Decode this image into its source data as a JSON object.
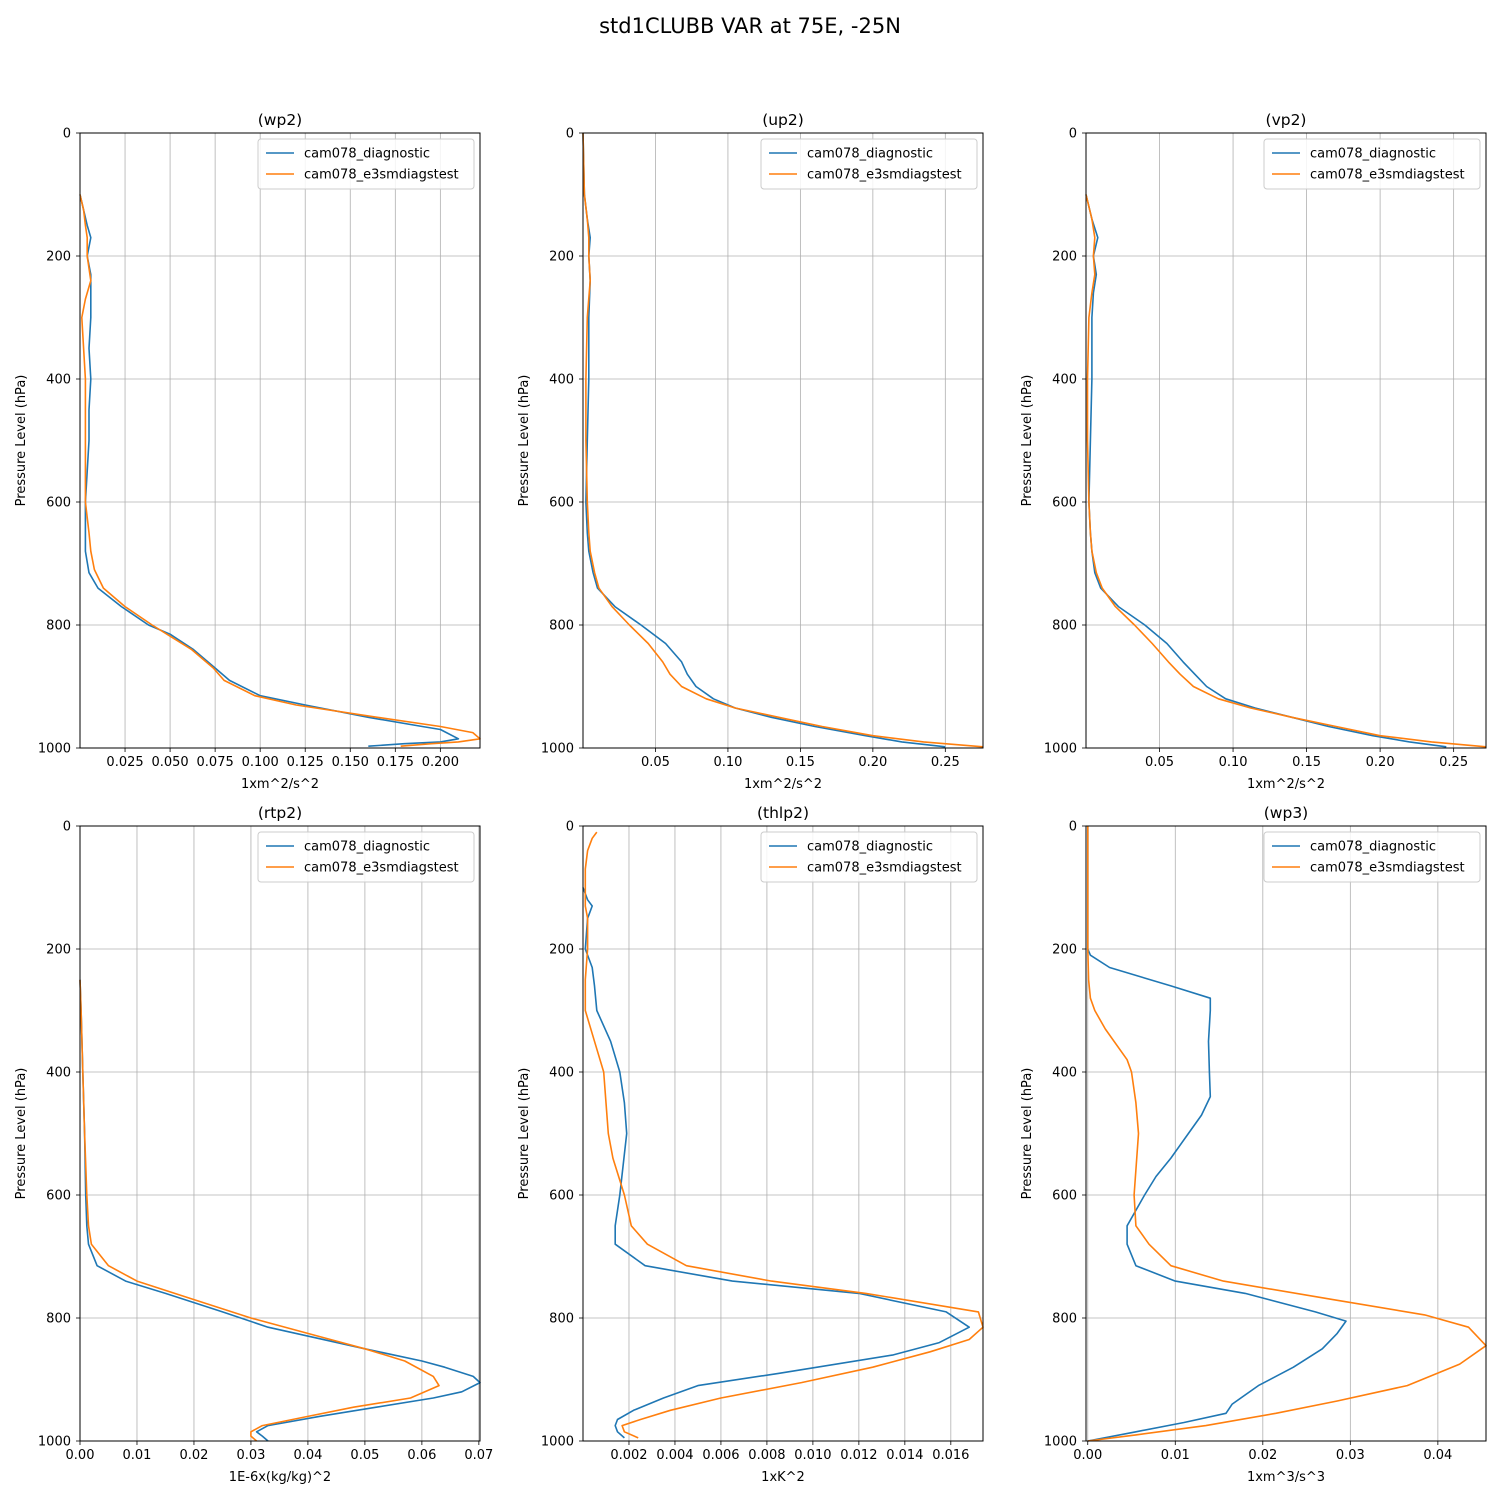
{
  "figure": {
    "title": "std1CLUBB VAR at 75E, -25N"
  },
  "colors": {
    "cam078_diagnostic": "#1f77b4",
    "cam078_e3smdiagstest": "#ff7f0e",
    "grid": "#b0b0b0"
  },
  "chart_data": [
    {
      "type": "line",
      "title": "(wp2)",
      "xlabel": "1xm^2/s^2",
      "ylabel": "Pressure Level (hPa)",
      "xlim": [
        0.0,
        0.222
      ],
      "ylim": [
        1000,
        0
      ],
      "y_inverted": true,
      "xticks": [
        0.025,
        0.05,
        0.075,
        0.1,
        0.125,
        0.15,
        0.175,
        0.2
      ],
      "xtick_labels": [
        "0.025",
        "0.050",
        "0.075",
        "0.100",
        "0.125",
        "0.150",
        "0.175",
        "0.200"
      ],
      "yticks": [
        0,
        200,
        400,
        600,
        800,
        1000
      ],
      "ytick_labels": [
        "0",
        "200",
        "400",
        "600",
        "800",
        "1000"
      ],
      "grid": true,
      "legend": "top-right",
      "series": [
        {
          "name": "cam078_diagnostic",
          "p": [
            100,
            125,
            150,
            170,
            200,
            230,
            260,
            300,
            350,
            400,
            450,
            500,
            550,
            600,
            650,
            680,
            715,
            740,
            770,
            800,
            815,
            840,
            870,
            890,
            915,
            930,
            950,
            965,
            970,
            985,
            990,
            993,
            997
          ],
          "x": [
            0.0,
            0.002,
            0.004,
            0.006,
            0.004,
            0.006,
            0.006,
            0.006,
            0.005,
            0.006,
            0.005,
            0.005,
            0.004,
            0.003,
            0.003,
            0.003,
            0.005,
            0.01,
            0.023,
            0.038,
            0.05,
            0.063,
            0.075,
            0.083,
            0.1,
            0.125,
            0.16,
            0.19,
            0.2,
            0.21,
            0.2,
            0.18,
            0.16
          ]
        },
        {
          "name": "cam078_e3smdiagstest",
          "p": [
            100,
            125,
            150,
            170,
            200,
            240,
            270,
            300,
            350,
            400,
            450,
            500,
            550,
            600,
            650,
            680,
            710,
            740,
            770,
            800,
            840,
            870,
            890,
            915,
            930,
            950,
            965,
            975,
            985,
            990,
            993,
            997
          ],
          "x": [
            0.0,
            0.002,
            0.003,
            0.004,
            0.004,
            0.006,
            0.003,
            0.001,
            0.002,
            0.003,
            0.003,
            0.003,
            0.003,
            0.003,
            0.005,
            0.006,
            0.008,
            0.013,
            0.025,
            0.04,
            0.062,
            0.074,
            0.08,
            0.097,
            0.12,
            0.165,
            0.2,
            0.218,
            0.222,
            0.21,
            0.195,
            0.178
          ]
        }
      ]
    },
    {
      "type": "line",
      "title": "(up2)",
      "xlabel": "1xm^2/s^2",
      "ylabel": "Pressure Level (hPa)",
      "xlim": [
        0.0,
        0.276
      ],
      "ylim": [
        1000,
        0
      ],
      "y_inverted": true,
      "xticks": [
        0.05,
        0.1,
        0.15,
        0.2,
        0.25
      ],
      "xtick_labels": [
        "0.05",
        "0.10",
        "0.15",
        "0.20",
        "0.25"
      ],
      "yticks": [
        0,
        200,
        400,
        600,
        800,
        1000
      ],
      "ytick_labels": [
        "0",
        "200",
        "400",
        "600",
        "800",
        "1000"
      ],
      "grid": true,
      "legend": "top-right",
      "series": [
        {
          "name": "cam078_diagnostic",
          "p": [
            0,
            100,
            140,
            170,
            200,
            240,
            300,
            400,
            500,
            600,
            650,
            680,
            715,
            740,
            770,
            800,
            830,
            860,
            880,
            900,
            920,
            935,
            950,
            965,
            980,
            990,
            998
          ],
          "x": [
            0.0,
            0.001,
            0.003,
            0.005,
            0.004,
            0.005,
            0.004,
            0.004,
            0.003,
            0.002,
            0.003,
            0.004,
            0.007,
            0.01,
            0.022,
            0.04,
            0.057,
            0.068,
            0.072,
            0.078,
            0.09,
            0.105,
            0.13,
            0.16,
            0.195,
            0.22,
            0.25
          ]
        },
        {
          "name": "cam078_e3smdiagstest",
          "p": [
            0,
            100,
            140,
            170,
            200,
            240,
            300,
            400,
            500,
            600,
            650,
            680,
            715,
            740,
            770,
            800,
            830,
            860,
            880,
            900,
            920,
            935,
            950,
            965,
            980,
            990,
            998
          ],
          "x": [
            0.0,
            0.001,
            0.003,
            0.004,
            0.004,
            0.005,
            0.003,
            0.002,
            0.002,
            0.003,
            0.004,
            0.005,
            0.008,
            0.011,
            0.02,
            0.032,
            0.045,
            0.055,
            0.06,
            0.068,
            0.085,
            0.105,
            0.135,
            0.165,
            0.2,
            0.235,
            0.276
          ]
        }
      ]
    },
    {
      "type": "line",
      "title": "(vp2)",
      "xlabel": "1xm^2/s^2",
      "ylabel": "Pressure Level (hPa)",
      "xlim": [
        0.0,
        0.272
      ],
      "ylim": [
        1000,
        0
      ],
      "y_inverted": true,
      "xticks": [
        0.05,
        0.1,
        0.15,
        0.2,
        0.25
      ],
      "xtick_labels": [
        "0.05",
        "0.10",
        "0.15",
        "0.20",
        "0.25"
      ],
      "yticks": [
        0,
        200,
        400,
        600,
        800,
        1000
      ],
      "ytick_labels": [
        "0",
        "200",
        "400",
        "600",
        "800",
        "1000"
      ],
      "grid": true,
      "legend": "top-right",
      "series": [
        {
          "name": "cam078_diagnostic",
          "p": [
            100,
            140,
            170,
            200,
            230,
            260,
            300,
            400,
            500,
            600,
            650,
            680,
            715,
            740,
            770,
            800,
            830,
            860,
            880,
            900,
            920,
            935,
            950,
            965,
            980,
            990,
            998
          ],
          "x": [
            0.0,
            0.004,
            0.008,
            0.005,
            0.007,
            0.005,
            0.004,
            0.004,
            0.003,
            0.002,
            0.003,
            0.004,
            0.006,
            0.01,
            0.022,
            0.04,
            0.055,
            0.066,
            0.074,
            0.082,
            0.095,
            0.115,
            0.14,
            0.165,
            0.195,
            0.22,
            0.245
          ]
        },
        {
          "name": "cam078_e3smdiagstest",
          "p": [
            100,
            140,
            170,
            200,
            230,
            260,
            300,
            400,
            500,
            600,
            650,
            680,
            715,
            740,
            770,
            800,
            830,
            860,
            880,
            900,
            920,
            935,
            950,
            965,
            980,
            990,
            998
          ],
          "x": [
            0.0,
            0.004,
            0.006,
            0.005,
            0.006,
            0.004,
            0.002,
            0.001,
            0.001,
            0.002,
            0.003,
            0.004,
            0.007,
            0.011,
            0.02,
            0.033,
            0.045,
            0.056,
            0.064,
            0.073,
            0.09,
            0.112,
            0.14,
            0.17,
            0.2,
            0.235,
            0.272
          ]
        }
      ]
    },
    {
      "type": "line",
      "title": "(rtp2)",
      "xlabel": "1E-6x(kg/kg)^2",
      "ylabel": "Pressure Level (hPa)",
      "xlim": [
        0.0,
        0.0702
      ],
      "ylim": [
        1000,
        0
      ],
      "y_inverted": true,
      "xticks": [
        0.0,
        0.01,
        0.02,
        0.03,
        0.04,
        0.05,
        0.06,
        0.07
      ],
      "xtick_labels": [
        "0.00",
        "0.01",
        "0.02",
        "0.03",
        "0.04",
        "0.05",
        "0.06",
        "0.07"
      ],
      "yticks": [
        0,
        200,
        400,
        600,
        800,
        1000
      ],
      "ytick_labels": [
        "0",
        "200",
        "400",
        "600",
        "800",
        "1000"
      ],
      "grid": true,
      "legend": "top-right",
      "series": [
        {
          "name": "cam078_diagnostic",
          "p": [
            250,
            300,
            400,
            500,
            600,
            650,
            680,
            715,
            740,
            760,
            790,
            815,
            850,
            870,
            880,
            895,
            905,
            920,
            930,
            945,
            960,
            975,
            985,
            992,
            1000
          ],
          "x": [
            0.0,
            0.0002,
            0.0005,
            0.0008,
            0.001,
            0.0012,
            0.0015,
            0.003,
            0.008,
            0.015,
            0.025,
            0.033,
            0.05,
            0.06,
            0.064,
            0.069,
            0.0702,
            0.067,
            0.062,
            0.052,
            0.042,
            0.033,
            0.031,
            0.032,
            0.033
          ]
        },
        {
          "name": "cam078_e3smdiagstest",
          "p": [
            250,
            300,
            400,
            500,
            600,
            650,
            680,
            715,
            740,
            770,
            800,
            830,
            850,
            870,
            895,
            910,
            930,
            945,
            960,
            975,
            985,
            992,
            1000
          ],
          "x": [
            0.0,
            0.0002,
            0.0005,
            0.0008,
            0.0012,
            0.0015,
            0.002,
            0.005,
            0.01,
            0.02,
            0.03,
            0.042,
            0.05,
            0.057,
            0.062,
            0.063,
            0.058,
            0.048,
            0.04,
            0.032,
            0.03,
            0.03,
            0.031
          ]
        }
      ]
    },
    {
      "type": "line",
      "title": "(thlp2)",
      "xlabel": "1xK^2",
      "ylabel": "Pressure Level (hPa)",
      "xlim": [
        0.0,
        0.0174
      ],
      "ylim": [
        1000,
        0
      ],
      "y_inverted": true,
      "xticks": [
        0.002,
        0.004,
        0.006,
        0.008,
        0.01,
        0.012,
        0.014,
        0.016
      ],
      "xtick_labels": [
        "0.002",
        "0.004",
        "0.006",
        "0.008",
        "0.010",
        "0.012",
        "0.014",
        "0.016"
      ],
      "yticks": [
        0,
        200,
        400,
        600,
        800,
        1000
      ],
      "ytick_labels": [
        "0",
        "200",
        "400",
        "600",
        "800",
        "1000"
      ],
      "grid": true,
      "legend": "top-right",
      "series": [
        {
          "name": "cam078_diagnostic",
          "p": [
            100,
            120,
            130,
            150,
            200,
            230,
            260,
            300,
            350,
            400,
            450,
            500,
            600,
            650,
            680,
            715,
            740,
            760,
            790,
            815,
            840,
            860,
            890,
            910,
            930,
            950,
            965,
            975,
            985,
            995
          ],
          "x": [
            0.0,
            0.0002,
            0.0004,
            0.0002,
            0.0001,
            0.0004,
            0.0005,
            0.0006,
            0.0012,
            0.0016,
            0.0018,
            0.0019,
            0.0016,
            0.0014,
            0.0014,
            0.0027,
            0.0065,
            0.012,
            0.0158,
            0.0168,
            0.0155,
            0.0135,
            0.0085,
            0.005,
            0.0035,
            0.0022,
            0.0015,
            0.0014,
            0.0015,
            0.0018
          ]
        },
        {
          "name": "cam078_e3smdiagstest",
          "p": [
            10,
            20,
            40,
            70,
            100,
            130,
            150,
            200,
            250,
            300,
            350,
            400,
            450,
            500,
            540,
            600,
            650,
            680,
            715,
            740,
            760,
            790,
            815,
            835,
            855,
            880,
            905,
            930,
            950,
            965,
            975,
            985,
            995
          ],
          "x": [
            0.0006,
            0.0004,
            0.0002,
            0.0001,
            0.0001,
            0.0001,
            0.0002,
            0.0002,
            0.0001,
            0.0001,
            0.0005,
            0.0009,
            0.001,
            0.0011,
            0.0013,
            0.0018,
            0.0021,
            0.0028,
            0.0045,
            0.0082,
            0.0123,
            0.0172,
            0.0174,
            0.0168,
            0.0151,
            0.0126,
            0.0095,
            0.006,
            0.0038,
            0.0025,
            0.0017,
            0.0018,
            0.0024
          ]
        }
      ]
    },
    {
      "type": "line",
      "title": "(wp3)",
      "xlabel": "1xm^3/s^3",
      "ylabel": "Pressure Level (hPa)",
      "xlim": [
        -0.0002,
        0.0455
      ],
      "ylim": [
        1000,
        0
      ],
      "y_inverted": true,
      "xticks": [
        0.0,
        0.01,
        0.02,
        0.03,
        0.04
      ],
      "xtick_labels": [
        "0.00",
        "0.01",
        "0.02",
        "0.03",
        "0.04"
      ],
      "yticks": [
        0,
        200,
        400,
        600,
        800,
        1000
      ],
      "ytick_labels": [
        "0",
        "200",
        "400",
        "600",
        "800",
        "1000"
      ],
      "grid": true,
      "legend": "top-right",
      "series": [
        {
          "name": "cam078_diagnostic",
          "p": [
            0,
            100,
            200,
            210,
            230,
            260,
            280,
            300,
            350,
            400,
            440,
            470,
            500,
            540,
            570,
            600,
            650,
            680,
            715,
            740,
            760,
            790,
            805,
            825,
            850,
            880,
            910,
            940,
            955,
            970,
            985,
            1000
          ],
          "x": [
            0.0,
            0.0,
            0.0,
            0.0003,
            0.0025,
            0.0095,
            0.014,
            0.014,
            0.0138,
            0.0139,
            0.014,
            0.013,
            0.0115,
            0.0095,
            0.0078,
            0.0065,
            0.0045,
            0.0045,
            0.0055,
            0.01,
            0.018,
            0.026,
            0.0295,
            0.0285,
            0.0268,
            0.0235,
            0.0195,
            0.0165,
            0.0158,
            0.011,
            0.0055,
            0.0
          ]
        },
        {
          "name": "cam078_e3smdiagstest",
          "p": [
            0,
            100,
            200,
            250,
            280,
            300,
            330,
            380,
            400,
            450,
            500,
            600,
            650,
            680,
            715,
            740,
            770,
            795,
            815,
            845,
            875,
            910,
            935,
            955,
            975,
            990,
            1000
          ],
          "x": [
            0.0,
            0.0,
            0.0,
            0.0001,
            0.0003,
            0.0008,
            0.002,
            0.0045,
            0.005,
            0.0055,
            0.0058,
            0.0053,
            0.0055,
            0.007,
            0.0095,
            0.0155,
            0.028,
            0.0385,
            0.0435,
            0.0455,
            0.0425,
            0.0365,
            0.0285,
            0.0215,
            0.0135,
            0.0055,
            0.0
          ]
        }
      ]
    }
  ]
}
